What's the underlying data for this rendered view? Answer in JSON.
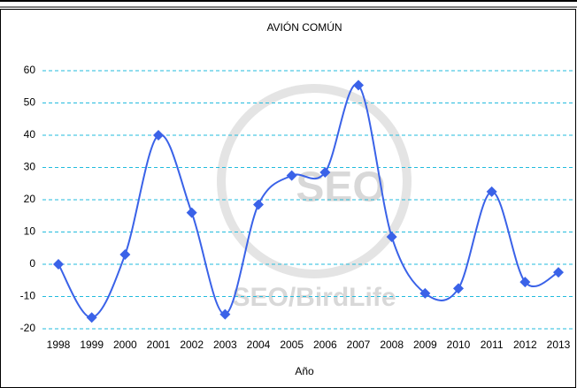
{
  "chart_data": {
    "type": "line",
    "title": "AVIÓN COMÚN",
    "x_label": "Año",
    "categories": [
      "1998",
      "1999",
      "2000",
      "2001",
      "2002",
      "2003",
      "2004",
      "2005",
      "2006",
      "2007",
      "2008",
      "2009",
      "2010",
      "2011",
      "2012",
      "2013"
    ],
    "series": [
      {
        "name": "AVIÓN COMÚN",
        "color": "#3a62e8",
        "values": [
          0,
          -16.5,
          3,
          40,
          16,
          -15.5,
          18.5,
          27.5,
          28.5,
          55.5,
          8.5,
          -9,
          -7.5,
          22.5,
          -5.5,
          -2.5
        ]
      }
    ],
    "ylim": [
      -20,
      60
    ],
    "yticks": [
      -20,
      -10,
      0,
      10,
      20,
      30,
      40,
      50,
      60
    ],
    "grid": true,
    "watermark": [
      "SEO",
      "SEO/BirdLife"
    ]
  }
}
